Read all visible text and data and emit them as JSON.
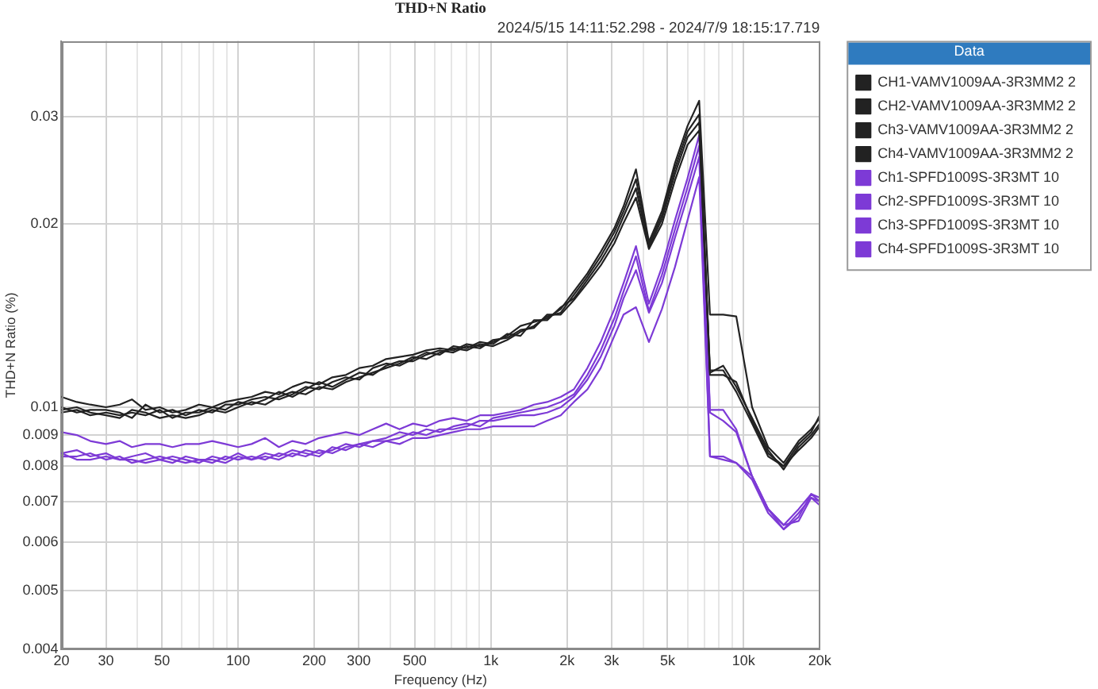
{
  "chart_data": {
    "type": "line",
    "title": "THD+N Ratio",
    "subtitle": "2024/5/15 14:11:52.298 - 2024/7/9 18:15:17.719",
    "xlabel": "Frequency (Hz)",
    "ylabel": "THD+N Ratio (%)",
    "legend_title": "Data",
    "legend": "right",
    "grid": true,
    "log": "xy",
    "xlim": [
      20,
      20000
    ],
    "ylim": [
      0.004,
      0.04
    ],
    "xticks": [
      20,
      30,
      {
        "value": 40,
        "label": null
      },
      50,
      {
        "value": 60,
        "label": null
      },
      {
        "value": 70,
        "label": null
      },
      {
        "value": 80,
        "label": null
      },
      {
        "value": 90,
        "label": null
      },
      100,
      200,
      300,
      {
        "value": 400,
        "label": null
      },
      500,
      {
        "value": 600,
        "label": null
      },
      {
        "value": 700,
        "label": null
      },
      {
        "value": 800,
        "label": null
      },
      {
        "value": 900,
        "label": null
      },
      {
        "value": 1000,
        "label": "1k"
      },
      {
        "value": 2000,
        "label": "2k"
      },
      {
        "value": 3000,
        "label": "3k"
      },
      {
        "value": 4000,
        "label": null
      },
      {
        "value": 5000,
        "label": "5k"
      },
      {
        "value": 6000,
        "label": null
      },
      {
        "value": 7000,
        "label": null
      },
      {
        "value": 8000,
        "label": null
      },
      {
        "value": 9000,
        "label": null
      },
      {
        "value": 10000,
        "label": "10k"
      },
      {
        "value": 20000,
        "label": "20k"
      }
    ],
    "yticks": [
      0.004,
      0.005,
      0.006,
      0.007,
      0.008,
      0.009,
      0.01,
      0.02,
      0.03
    ],
    "x": [
      20,
      23,
      26,
      30,
      34,
      38,
      43,
      49,
      55,
      62,
      70,
      79,
      89,
      100,
      113,
      128,
      145,
      164,
      185,
      209,
      236,
      267,
      302,
      341,
      385,
      435,
      492,
      556,
      628,
      710,
      802,
      906,
      1020,
      1160,
      1310,
      1480,
      1670,
      1890,
      2130,
      2410,
      2720,
      3080,
      3350,
      3750,
      4220,
      4750,
      5350,
      6000,
      6670,
      7360,
      8300,
      9350,
      10800,
      12500,
      14400,
      16500,
      18500,
      20000
    ],
    "series": [
      {
        "name": "CH1-VAMV1009AA-3R3MM2 2",
        "color": "#222222",
        "values": [
          0.0104,
          0.0102,
          0.0101,
          0.01,
          0.0101,
          0.0103,
          0.0099,
          0.01,
          0.0098,
          0.0099,
          0.0101,
          0.01,
          0.0102,
          0.0103,
          0.0104,
          0.0106,
          0.0105,
          0.0108,
          0.011,
          0.0109,
          0.0112,
          0.0113,
          0.0116,
          0.0117,
          0.012,
          0.0121,
          0.0122,
          0.0124,
          0.0125,
          0.0124,
          0.0127,
          0.0126,
          0.0128,
          0.0131,
          0.0136,
          0.0138,
          0.014,
          0.0145,
          0.0155,
          0.0166,
          0.018,
          0.0197,
          0.0214,
          0.0246,
          0.0187,
          0.021,
          0.0252,
          0.029,
          0.0319,
          0.0142,
          0.0142,
          0.0141,
          0.01,
          0.0086,
          0.0081,
          0.0088,
          0.0092,
          0.0096
        ]
      },
      {
        "name": "CH2-VAMV1009AA-3R3MM2 2",
        "color": "#222222",
        "values": [
          0.0099,
          0.01,
          0.0098,
          0.0097,
          0.0096,
          0.0099,
          0.0098,
          0.0096,
          0.0097,
          0.0096,
          0.0097,
          0.0099,
          0.0098,
          0.01,
          0.0102,
          0.0101,
          0.0104,
          0.0106,
          0.0105,
          0.0108,
          0.0107,
          0.011,
          0.0112,
          0.0114,
          0.0116,
          0.0118,
          0.0121,
          0.012,
          0.0123,
          0.0125,
          0.0124,
          0.0127,
          0.0126,
          0.0129,
          0.0133,
          0.0136,
          0.0141,
          0.0143,
          0.0153,
          0.0164,
          0.0177,
          0.0194,
          0.021,
          0.0237,
          0.0185,
          0.0207,
          0.0247,
          0.0284,
          0.0303,
          0.0114,
          0.0117,
          0.0108,
          0.0096,
          0.0085,
          0.0079,
          0.0086,
          0.009,
          0.0094
        ]
      },
      {
        "name": "Ch3-VAMV1009AA-3R3MM2 2",
        "color": "#222222",
        "values": [
          0.01,
          0.0098,
          0.0099,
          0.0099,
          0.0098,
          0.0096,
          0.0101,
          0.0098,
          0.0099,
          0.0097,
          0.0099,
          0.0098,
          0.0101,
          0.0101,
          0.0103,
          0.0104,
          0.0103,
          0.0105,
          0.0108,
          0.0107,
          0.011,
          0.0112,
          0.0111,
          0.0116,
          0.0118,
          0.0117,
          0.012,
          0.0123,
          0.0122,
          0.0126,
          0.0125,
          0.0128,
          0.0127,
          0.0132,
          0.0131,
          0.0139,
          0.0139,
          0.0146,
          0.0151,
          0.0162,
          0.0174,
          0.019,
          0.0206,
          0.0229,
          0.0183,
          0.0204,
          0.0242,
          0.0278,
          0.0294,
          0.0113,
          0.0113,
          0.011,
          0.0095,
          0.0084,
          0.008,
          0.0085,
          0.0089,
          0.0093
        ]
      },
      {
        "name": "Ch4-VAMV1009AA-3R3MM2 2",
        "color": "#222222",
        "values": [
          0.0098,
          0.0099,
          0.0097,
          0.0098,
          0.0097,
          0.0098,
          0.0097,
          0.0099,
          0.0096,
          0.0098,
          0.0098,
          0.01,
          0.0099,
          0.0102,
          0.0101,
          0.0103,
          0.0106,
          0.0104,
          0.0107,
          0.011,
          0.0108,
          0.0111,
          0.0114,
          0.0113,
          0.0117,
          0.0119,
          0.0119,
          0.0122,
          0.0124,
          0.0123,
          0.0126,
          0.0125,
          0.0129,
          0.013,
          0.0134,
          0.0135,
          0.0142,
          0.0142,
          0.015,
          0.016,
          0.0171,
          0.0186,
          0.0201,
          0.0221,
          0.0182,
          0.02,
          0.0236,
          0.027,
          0.0285,
          0.0115,
          0.0115,
          0.0106,
          0.0094,
          0.0083,
          0.008,
          0.0087,
          0.0091,
          0.0097
        ]
      },
      {
        "name": "Ch1-SPFD1009S-3R3MT 10",
        "color": "#7d3ad6",
        "values": [
          0.0091,
          0.009,
          0.0088,
          0.0087,
          0.0088,
          0.0086,
          0.0087,
          0.0087,
          0.0086,
          0.0087,
          0.0087,
          0.0088,
          0.0087,
          0.0086,
          0.0087,
          0.0089,
          0.0086,
          0.0088,
          0.0087,
          0.0089,
          0.009,
          0.0091,
          0.009,
          0.0092,
          0.0094,
          0.0092,
          0.0094,
          0.0093,
          0.0095,
          0.0096,
          0.0095,
          0.0097,
          0.0097,
          0.0098,
          0.0099,
          0.0101,
          0.0102,
          0.0104,
          0.0107,
          0.0116,
          0.0128,
          0.0145,
          0.016,
          0.0184,
          0.0148,
          0.017,
          0.0203,
          0.0238,
          0.028,
          0.0099,
          0.0099,
          0.0092,
          0.0077,
          0.0068,
          0.0064,
          0.0068,
          0.0072,
          0.0071
        ]
      },
      {
        "name": "Ch2-SPFD1009S-3R3MT 10",
        "color": "#7d3ad6",
        "values": [
          0.0084,
          0.0085,
          0.0083,
          0.0084,
          0.0082,
          0.0083,
          0.0084,
          0.0082,
          0.0083,
          0.0082,
          0.0081,
          0.0083,
          0.0082,
          0.0084,
          0.0082,
          0.0084,
          0.0083,
          0.0085,
          0.0084,
          0.0083,
          0.0086,
          0.0085,
          0.0087,
          0.0088,
          0.0089,
          0.0091,
          0.009,
          0.0092,
          0.0091,
          0.0093,
          0.0094,
          0.0093,
          0.0096,
          0.0097,
          0.0098,
          0.0099,
          0.01,
          0.0102,
          0.0105,
          0.0113,
          0.0124,
          0.014,
          0.0155,
          0.0177,
          0.0144,
          0.0165,
          0.0196,
          0.023,
          0.0269,
          0.0098,
          0.0095,
          0.0091,
          0.0077,
          0.0068,
          0.0063,
          0.0067,
          0.0071,
          0.007
        ]
      },
      {
        "name": "Ch3-SPFD1009S-3R3MT 10",
        "color": "#7d3ad6",
        "values": [
          0.0083,
          0.0083,
          0.0084,
          0.0082,
          0.0083,
          0.0081,
          0.0082,
          0.0083,
          0.0082,
          0.0081,
          0.0082,
          0.0081,
          0.0083,
          0.0082,
          0.0083,
          0.0082,
          0.0084,
          0.0083,
          0.0085,
          0.0084,
          0.0085,
          0.0087,
          0.0086,
          0.0088,
          0.0088,
          0.0089,
          0.0091,
          0.009,
          0.0092,
          0.0092,
          0.0093,
          0.0095,
          0.0095,
          0.0096,
          0.0097,
          0.0097,
          0.0098,
          0.01,
          0.0104,
          0.0111,
          0.0121,
          0.0136,
          0.0151,
          0.0168,
          0.0143,
          0.016,
          0.019,
          0.0222,
          0.0258,
          0.0083,
          0.0083,
          0.0081,
          0.0076,
          0.0067,
          0.0063,
          0.0066,
          0.0072,
          0.007
        ]
      },
      {
        "name": "Ch4-SPFD1009S-3R3MT 10",
        "color": "#7d3ad6",
        "values": [
          0.0084,
          0.0082,
          0.0082,
          0.0083,
          0.0082,
          0.0082,
          0.0081,
          0.0082,
          0.0081,
          0.0083,
          0.0082,
          0.0082,
          0.0081,
          0.0083,
          0.0082,
          0.0083,
          0.0082,
          0.0084,
          0.0083,
          0.0085,
          0.0084,
          0.0086,
          0.0087,
          0.0086,
          0.0088,
          0.0087,
          0.0089,
          0.0089,
          0.009,
          0.0091,
          0.0092,
          0.0092,
          0.0093,
          0.0093,
          0.0093,
          0.0093,
          0.0095,
          0.0097,
          0.0102,
          0.0107,
          0.0116,
          0.0131,
          0.0142,
          0.0146,
          0.0128,
          0.0145,
          0.017,
          0.0203,
          0.0239,
          0.0083,
          0.0082,
          0.0081,
          0.0077,
          0.0068,
          0.0064,
          0.0065,
          0.0071,
          0.0069
        ]
      }
    ]
  }
}
